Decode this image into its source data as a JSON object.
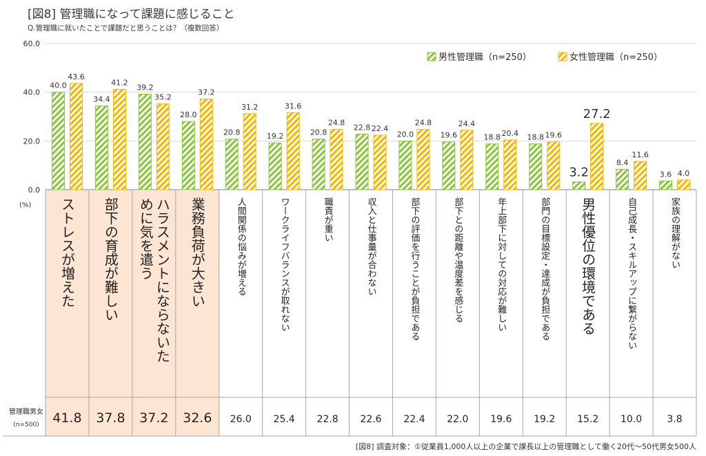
{
  "title": "[図8] 管理職になって課題に感じること",
  "question": "Q.管理職に就いたことで課題だと思うことは？（複数回答）",
  "footnote": "[図8] 調査対象：①従業員1,000人以上の企業で課長以上の管理職として働く20代～50代男女500人",
  "chart_data": {
    "type": "bar",
    "yunit": "(%)",
    "ylim": [
      0,
      60
    ],
    "yticks": [
      "0.0",
      "20.0",
      "40.0",
      "60.0"
    ],
    "categories": [
      "ストレスが増えた",
      "部下の育成が難しい",
      "ハラスメントにならないために気を遣う",
      "業務負荷が大きい",
      "人間関係の悩みが増える",
      "ワークライフバランスが取れない",
      "職責が重い",
      "収入と仕事量が合わない",
      "部下の評価を行うことが負担である",
      "部下との距離や温度差を感じる",
      "年上部下に対しての対応が難しい",
      "部門の目標設定・達成が負担である",
      "男性優位の環境である",
      "自己成長・スキルアップに繋がらない",
      "家族の理解がない"
    ],
    "series": [
      {
        "name": "男性管理職（n=250）",
        "color": "#8cc63f",
        "values": [
          40.0,
          34.4,
          39.2,
          28.0,
          20.8,
          19.2,
          20.8,
          22.8,
          20.0,
          19.6,
          18.8,
          18.8,
          3.2,
          8.4,
          3.6
        ]
      },
      {
        "name": "女性管理職（n=250）",
        "color": "#f5b800",
        "values": [
          43.6,
          41.2,
          35.2,
          37.2,
          31.2,
          31.6,
          24.8,
          22.4,
          24.8,
          24.4,
          20.4,
          19.6,
          27.2,
          11.6,
          4.0
        ]
      }
    ],
    "total_row": {
      "label": "管理職男女",
      "sublabel": "(n=500)",
      "values": [
        "41.8",
        "37.8",
        "37.2",
        "32.6",
        "26.0",
        "25.4",
        "22.8",
        "22.6",
        "22.4",
        "22.0",
        "19.6",
        "19.2",
        "15.2",
        "10.0",
        "3.8"
      ]
    },
    "highlight_count": 4,
    "highlight_color": "#fde5d3",
    "legend_position": "top-right",
    "grid": true
  }
}
